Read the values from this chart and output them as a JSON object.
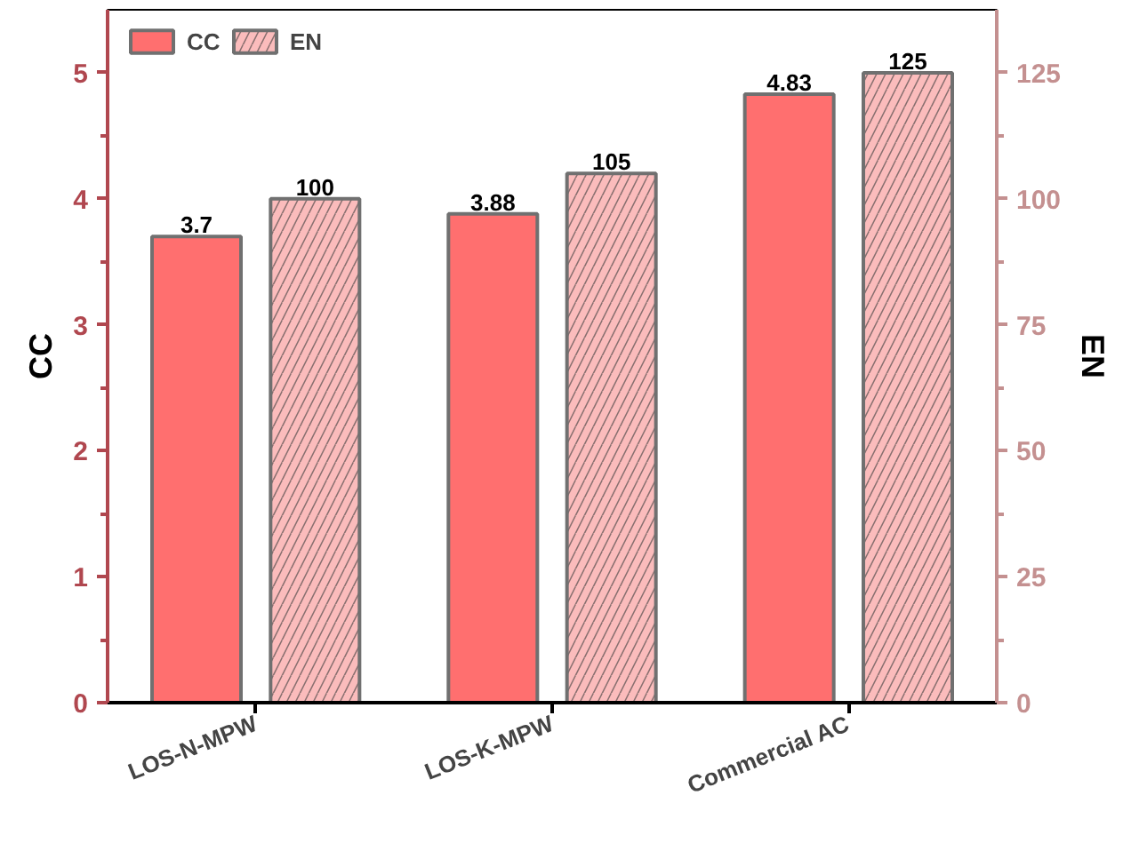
{
  "chart_data": {
    "type": "bar",
    "categories": [
      "LOS-N-MPW",
      "LOS-K-MPW",
      "Commercial AC"
    ],
    "ylabel": "CC",
    "y2label": "EN",
    "series": [
      {
        "name": "CC",
        "color": "#ff6f6f",
        "values": [
          3.7,
          3.88,
          4.83
        ]
      },
      {
        "name": "EN",
        "color": "#fbbcbc",
        "values": [
          100,
          105,
          125
        ],
        "axis": "y2"
      }
    ],
    "ylim": [
      0,
      5.5
    ],
    "yticks": [
      0,
      {
        "value": 0.5,
        "label": null
      },
      1,
      {
        "value": 1.5,
        "label": null
      },
      2,
      {
        "value": 2.5,
        "label": null
      },
      3,
      {
        "value": 3.5,
        "label": null
      },
      4,
      {
        "value": 4.5,
        "label": null
      },
      5
    ],
    "y2lim": [
      0,
      137.5
    ],
    "y2ticks": [
      0,
      {
        "value": 12.5,
        "label": null
      },
      25,
      {
        "value": 37.5,
        "label": null
      },
      50,
      {
        "value": 62.5,
        "label": null
      },
      75,
      {
        "value": 87.5,
        "label": null
      },
      100,
      {
        "value": 112.5,
        "label": null
      },
      125
    ],
    "data_labels": true,
    "legend": "top left",
    "grid": false
  }
}
